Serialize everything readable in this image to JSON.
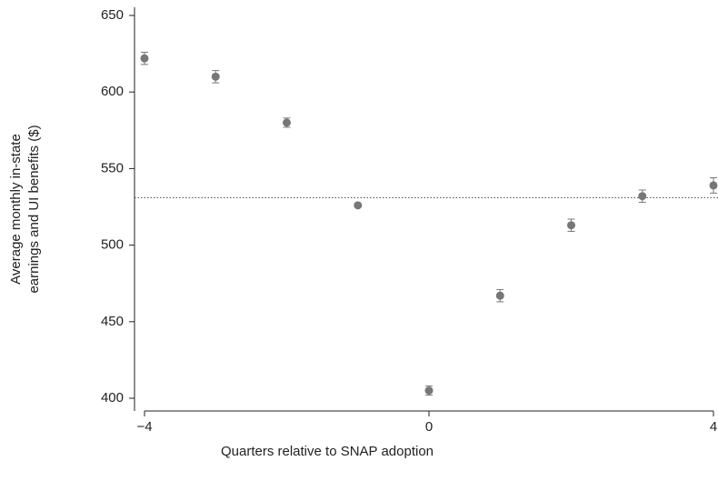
{
  "chart_data": {
    "type": "scatter",
    "x_label": "Quarters relative to SNAP adoption",
    "y_label": [
      "Average monthly in-state",
      "earnings and UI benefits ($)"
    ],
    "x": [
      -4,
      -3,
      -2,
      -1,
      0,
      1,
      2,
      3,
      4
    ],
    "series": [
      {
        "color": "#777777",
        "values": [
          622,
          610,
          580,
          526,
          405,
          467,
          513,
          532,
          539
        ],
        "errors": [
          4,
          4,
          3,
          1,
          3,
          4,
          4,
          4,
          5
        ]
      }
    ],
    "reference_line": 531,
    "xlim": [
      -4,
      4
    ],
    "ylim": [
      400,
      650
    ],
    "xticks": [
      {
        "value": -4,
        "label": "−4"
      },
      0,
      4
    ],
    "yticks": [
      400,
      450,
      500,
      550,
      600,
      650
    ]
  }
}
